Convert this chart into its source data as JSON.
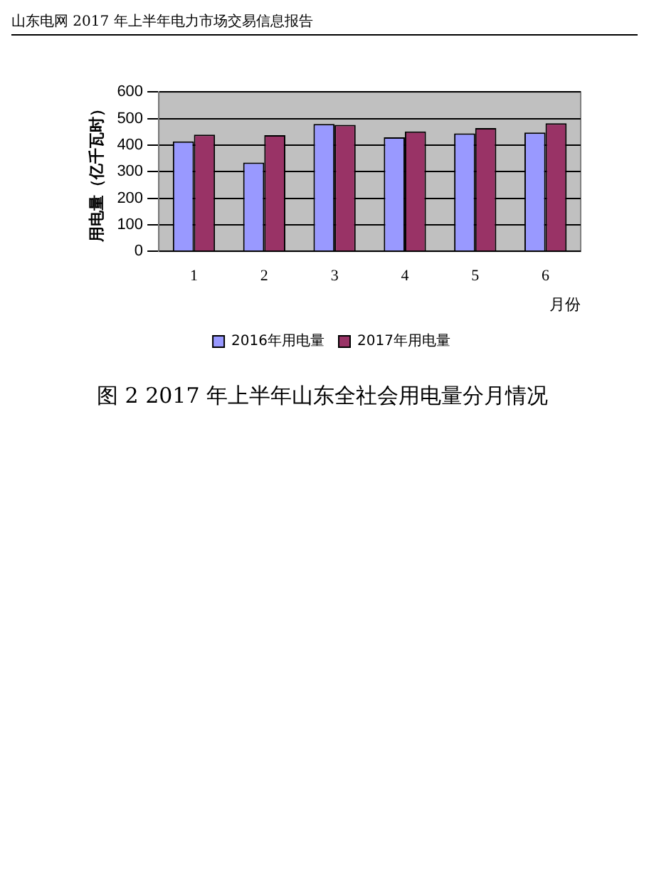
{
  "chart_data": {
    "type": "bar",
    "title": "图 2 2017 年上半年山东全社会用电量分月情况",
    "xlabel": "月份",
    "ylabel": "用电量（亿千瓦时）",
    "annotations": [
      "山东电网 2017 年上半年电力市场交易信息报告"
    ],
    "categories": [
      "1",
      "2",
      "3",
      "4",
      "5",
      "6"
    ],
    "series": [
      {
        "name": "2016年用电量",
        "color": "#9999ff",
        "values": [
          414,
          334,
          479,
          429,
          444,
          447
        ]
      },
      {
        "name": "2017年用电量",
        "color": "#993366",
        "values": [
          439,
          437,
          476,
          451,
          464,
          482
        ]
      }
    ],
    "ylim": [
      0,
      600
    ],
    "yticks": [
      0,
      100,
      200,
      300,
      400,
      500,
      600
    ],
    "grid": "y",
    "legend": "bottom"
  }
}
